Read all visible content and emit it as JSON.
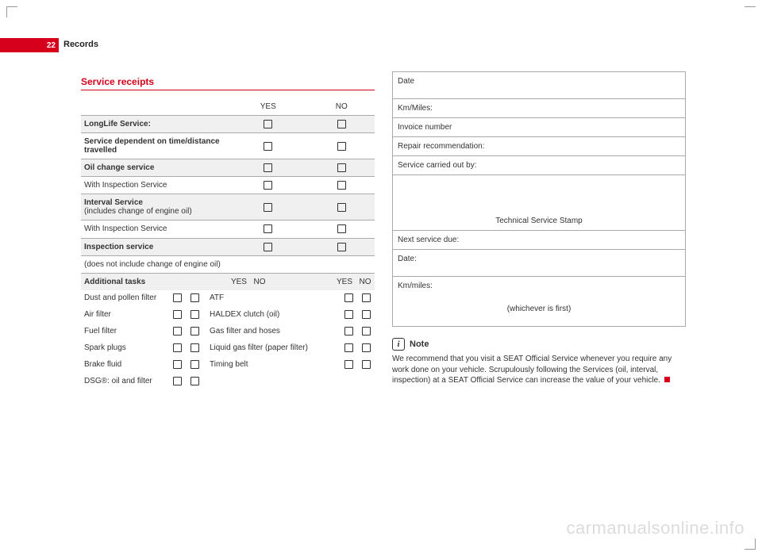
{
  "page": {
    "number": "22",
    "section": "Records"
  },
  "colors": {
    "accent": "#d6001c",
    "text": "#333333",
    "rule": "#aaaaaa",
    "shade": "#f0f0f0"
  },
  "left": {
    "heading": "Service receipts",
    "cols": {
      "yes": "YES",
      "no": "NO"
    },
    "rows": [
      {
        "label": "LongLife Service:",
        "bold": true,
        "shade": true
      },
      {
        "label": "Service dependent on time/distance travelled",
        "bold": true
      },
      {
        "label": "Oil change service",
        "bold": true,
        "shade": true
      },
      {
        "label": "With Inspection Service",
        "bold": false
      },
      {
        "label_html": "Interval Service",
        "sub": "(includes change of engine oil)",
        "bold": true,
        "shade": true
      },
      {
        "label": "With Inspection Service",
        "bold": false
      },
      {
        "label": "Inspection service",
        "bold": true,
        "shade": true
      },
      {
        "label": "(does not include change of engine oil)",
        "bold": false,
        "nocheck": true
      }
    ],
    "tasks": {
      "title": "Additional tasks",
      "left": [
        "Dust and pollen filter",
        "Air filter",
        "Fuel filter",
        "Spark plugs",
        "Brake fluid",
        "DSG®: oil and filter"
      ],
      "right": [
        "ATF",
        "HALDEX clutch (oil)",
        "Gas filter and hoses",
        "Liquid gas filter (paper filter)",
        "Timing belt",
        ""
      ]
    }
  },
  "right": {
    "fields": {
      "date": "Date",
      "km": "Km/Miles:",
      "invoice": "Invoice number",
      "repair": "Repair recommendation:",
      "carried": "Service carried out by:",
      "stamp": "Technical Service Stamp",
      "next": "Next service due:",
      "date2": "Date:",
      "km2": "Km/miles:",
      "which": "(whichever is first)"
    },
    "note": {
      "title": "Note",
      "body": "We recommend that you visit a SEAT Official Service whenever you require any work done on your vehicle. Scrupulously following the Services (oil, interval, inspection) at a SEAT Official Service can increase the value of your vehicle."
    }
  },
  "watermark": "carmanualsonline.info"
}
